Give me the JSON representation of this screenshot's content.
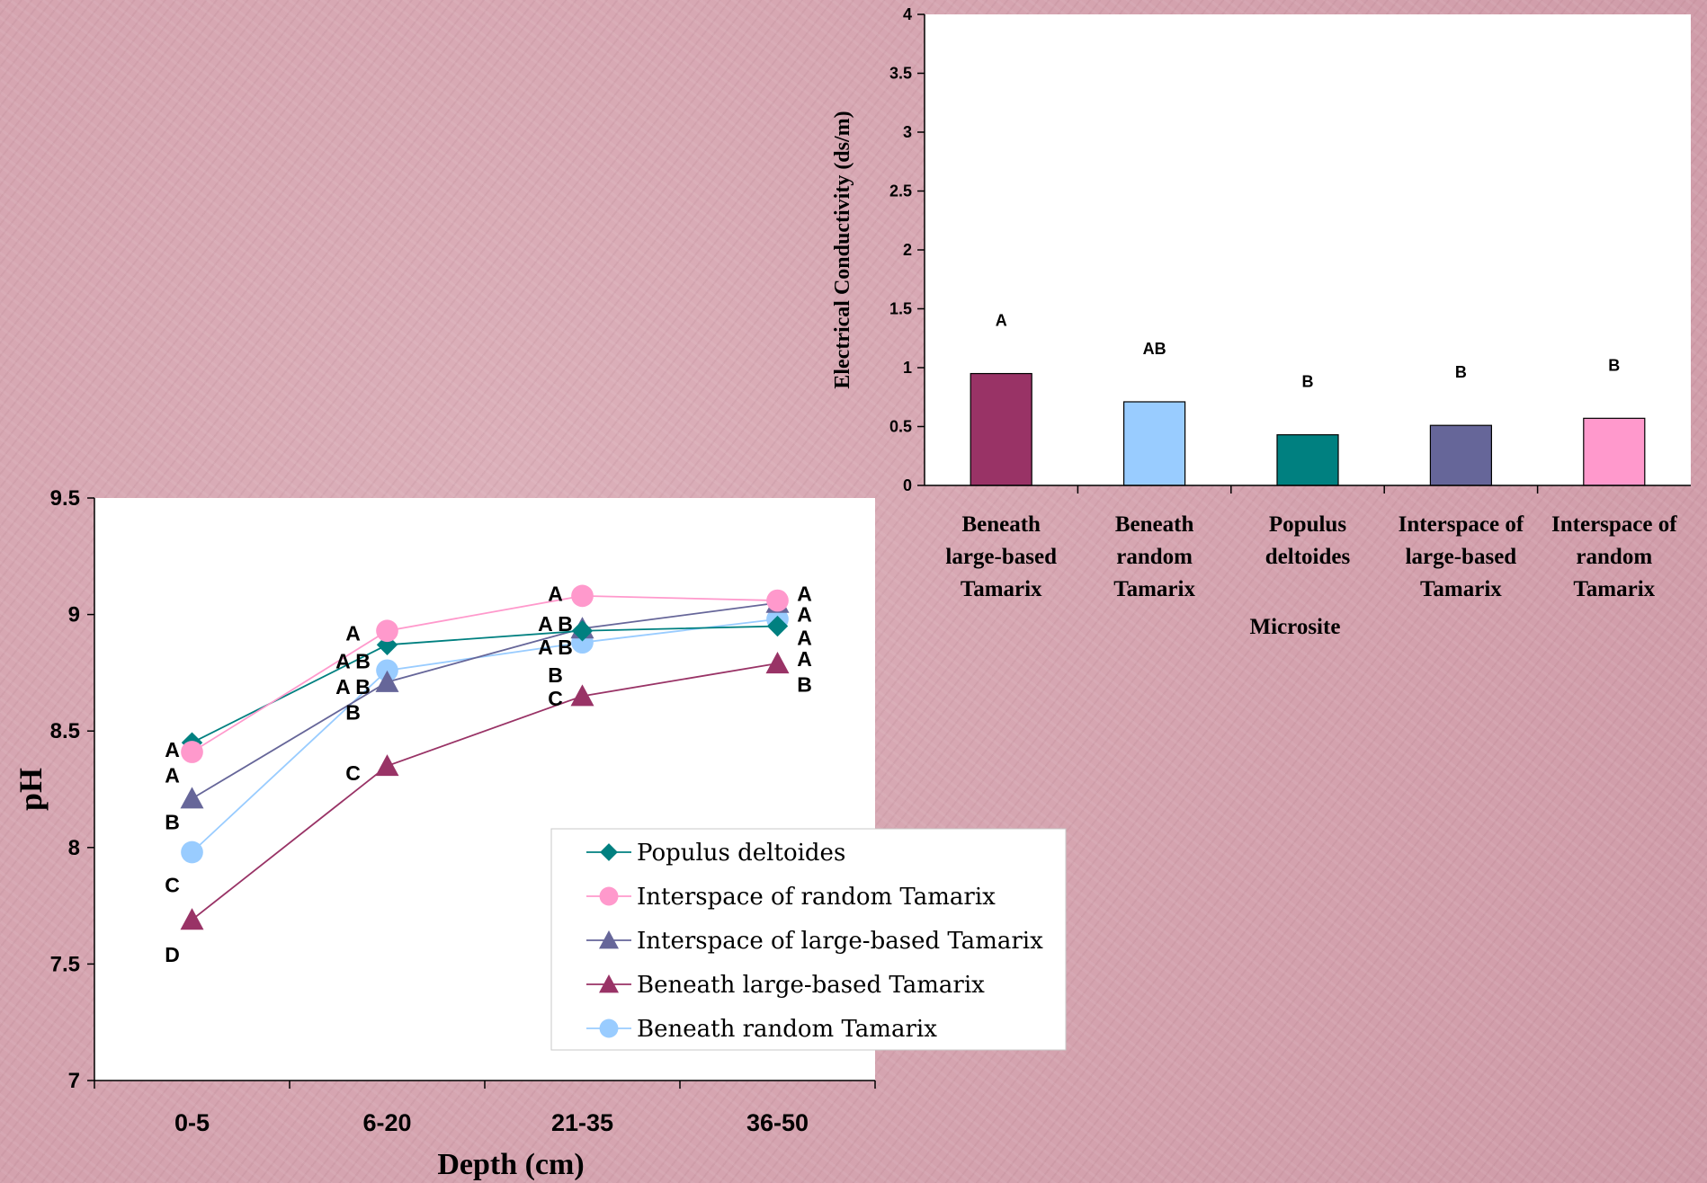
{
  "chart_data": [
    {
      "type": "bar",
      "categories": [
        "Beneath large-based Tamarix",
        "Beneath random Tamarix",
        "Populus deltoides",
        "Interspace of large-based Tamarix",
        "Interspace of random Tamarix"
      ],
      "category_lines": [
        [
          "Beneath",
          "large-based",
          "Tamarix"
        ],
        [
          "Beneath",
          "random",
          "Tamarix"
        ],
        [
          "Populus",
          "deltoides"
        ],
        [
          "Interspace of",
          "large-based",
          "Tamarix"
        ],
        [
          "Interspace of",
          "random",
          "Tamarix"
        ]
      ],
      "values": [
        0.95,
        0.71,
        0.43,
        0.51,
        0.57
      ],
      "letters": [
        "A",
        "AB",
        "B",
        "B",
        "B"
      ],
      "colors": [
        "#993366",
        "#99ccff",
        "#008080",
        "#666699",
        "#ff99cc"
      ],
      "xlabel": "Microsite",
      "ylabel": "Electrical Conductivity (ds/m)",
      "ylim": [
        0,
        4
      ],
      "yticks": [
        0,
        0.5,
        1,
        1.5,
        2,
        2.5,
        3,
        3.5,
        4
      ],
      "ytick_labels": [
        "0",
        "0.5",
        "1",
        "1.5",
        "2",
        "2.5",
        "3",
        "3.5",
        "4"
      ],
      "grid": false
    },
    {
      "type": "line",
      "categories": [
        "0-5",
        "6-20",
        "21-35",
        "36-50"
      ],
      "xlabel": "Depth (cm)",
      "ylabel": "pH",
      "ylim": [
        7,
        9.5
      ],
      "yticks": [
        7,
        7.5,
        8,
        8.5,
        9,
        9.5
      ],
      "ytick_labels": [
        "7",
        "7.5",
        "8",
        "8.5",
        "9",
        "9.5"
      ],
      "grid": false,
      "legend_position": "bottom-right",
      "series": [
        {
          "name": "Populus deltoides",
          "values": [
            8.45,
            8.87,
            8.93,
            8.95
          ],
          "color": "#008080",
          "marker": "diamond"
        },
        {
          "name": "Interspace of random Tamarix",
          "values": [
            8.41,
            8.93,
            9.08,
            9.06
          ],
          "color": "#ff99cc",
          "marker": "circle"
        },
        {
          "name": "Interspace of large-based Tamarix",
          "values": [
            8.21,
            8.71,
            8.94,
            9.05
          ],
          "color": "#666699",
          "marker": "triangle"
        },
        {
          "name": "Beneath large-based Tamarix",
          "values": [
            7.69,
            8.35,
            8.65,
            8.79
          ],
          "color": "#993366",
          "marker": "triangle"
        },
        {
          "name": "Beneath random Tamarix",
          "values": [
            7.98,
            8.76,
            8.88,
            8.98
          ],
          "color": "#99ccff",
          "marker": "circle"
        }
      ],
      "annotations": [
        {
          "text": "A",
          "x": "0-5",
          "y": 8.42
        },
        {
          "text": "A",
          "x": "0-5",
          "y": 8.31
        },
        {
          "text": "B",
          "x": "0-5",
          "y": 8.11
        },
        {
          "text": "C",
          "x": "0-5",
          "y": 7.84
        },
        {
          "text": "D",
          "x": "0-5",
          "y": 7.54
        },
        {
          "text": "A",
          "x": "6-20",
          "y": 8.92
        },
        {
          "text": "A B",
          "x": "6-20",
          "y": 8.8
        },
        {
          "text": "A B",
          "x": "6-20",
          "y": 8.69
        },
        {
          "text": "B",
          "x": "6-20",
          "y": 8.58
        },
        {
          "text": "C",
          "x": "6-20",
          "y": 8.32
        },
        {
          "text": "A",
          "x": "21-35",
          "y": 9.09
        },
        {
          "text": "A B",
          "x": "21-35",
          "y": 8.96
        },
        {
          "text": "A B",
          "x": "21-35",
          "y": 8.86
        },
        {
          "text": "B",
          "x": "21-35",
          "y": 8.74
        },
        {
          "text": "C",
          "x": "21-35",
          "y": 8.64
        },
        {
          "text": "A",
          "x": "36-50",
          "y": 9.09
        },
        {
          "text": "A",
          "x": "36-50",
          "y": 9.0
        },
        {
          "text": "A",
          "x": "36-50",
          "y": 8.9
        },
        {
          "text": "A",
          "x": "36-50",
          "y": 8.81
        },
        {
          "text": "B",
          "x": "36-50",
          "y": 8.7
        }
      ]
    }
  ]
}
